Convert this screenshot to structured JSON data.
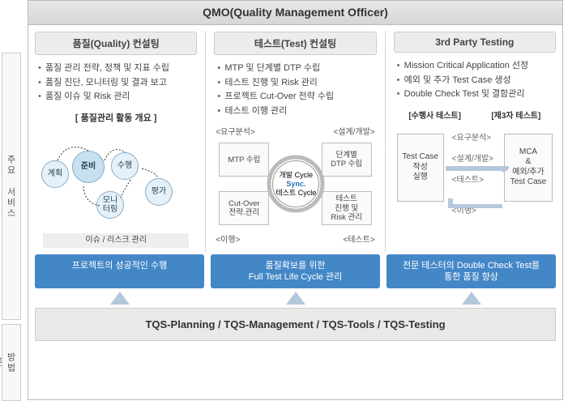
{
  "header": {
    "title": "QMO(Quality Management Officer)"
  },
  "sidebar": {
    "services_label": "주요 서비스",
    "method_label": "방법론"
  },
  "columns": [
    {
      "title": "품질(Quality) 컨설팅",
      "bullets": [
        "품질 관리 전략, 정책 및 지표 수립",
        "품질 진단, 모니터링 및 결과 보고",
        "품질 이슈 및 Risk 관리"
      ],
      "diagram": {
        "heading": "[ 품질관리 활동 개요 ]",
        "nodes": {
          "plan": "계획",
          "prepare": "준비",
          "execute": "수행",
          "monitor": "모니\n터링",
          "evaluate": "평가"
        },
        "issue_bar": "이슈 / 리스크 관리"
      },
      "banner": "프로젝트의 성공적인 수행"
    },
    {
      "title": "테스트(Test) 컨설팅",
      "bullets": [
        "MTP 및 단계별 DTP 수립",
        "테스트 진행 및 Risk 관리",
        "프로젝트 Cut-Over 전략 수립",
        "테스트 이행 관리"
      ],
      "diagram": {
        "corners": {
          "tl": "<요구분석>",
          "tr": "<설계/개발>",
          "bl": "<이행>",
          "br": "<테스트>"
        },
        "quads": {
          "tl": "MTP 수립",
          "tr": "단계별\nDTP 수립",
          "bl": "Cut-Over\n전략.관리",
          "br": "테스트\n진행 및\nRisk 관리"
        },
        "core": {
          "line1": "개발 Cycle",
          "line2": "Sync.",
          "line3": "테스트 Cycle"
        }
      },
      "banner": "품질확보를 위한\nFull Test Life Cycle 관리"
    },
    {
      "title": "3rd Party Testing",
      "bullets": [
        "Mission Critical Application 선정",
        "예외 및 추가 Test Case 생성",
        "Double Check Test 및 결함관리"
      ],
      "diagram": {
        "pair_heads": {
          "left": "[수행사 테스트]",
          "right": "[제3자 테스트]"
        },
        "left_box": "Test Case\n작성\n실행",
        "mid_labels": [
          "<요구분석>",
          "<설계/개발>",
          "<테스트>",
          "<이행>"
        ],
        "right_box": "MCA\n&\n예외/추가\nTest Case"
      },
      "banner": "전문 테스터의 Double Check Test를\n통한 품질 향상"
    }
  ],
  "tqs_bar": "TQS-Planning / TQS-Management / TQS-Tools / TQS-Testing",
  "colors": {
    "header_bg": "#e0e0e0",
    "col_title_bg": "#ececec",
    "banner_bg": "#4487c7",
    "banner_text": "#ffffff",
    "circle_fill": "#e6f0f8",
    "circle_border": "#88acc8",
    "arrow_fill": "#b4c8dc",
    "tqs_bg": "#e9e9e9",
    "sync_accent": "#2a6fbf"
  }
}
